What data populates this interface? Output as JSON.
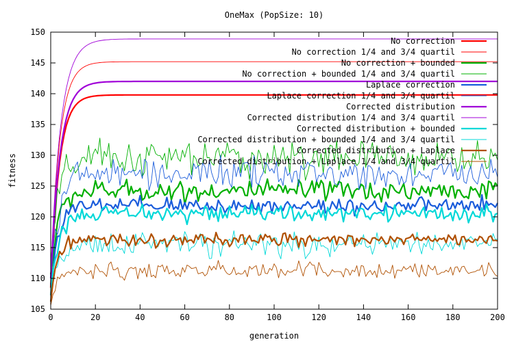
{
  "chart_data": {
    "type": "line",
    "title": "OneMax (PopSize: 10)",
    "xlabel": "generation",
    "ylabel": "fitness",
    "xlim": [
      0,
      200
    ],
    "ylim": [
      105,
      150
    ],
    "grid": false,
    "legend_placement": "top-right",
    "x_ticks": [
      "0",
      "20",
      "40",
      "60",
      "80",
      "100",
      "120",
      "140",
      "160",
      "180",
      "200"
    ],
    "y_ticks": [
      "105",
      "110",
      "115",
      "120",
      "125",
      "130",
      "135",
      "140",
      "145",
      "150"
    ],
    "series": [
      {
        "name": "No correction",
        "color": "#ff0000",
        "kind": "converge",
        "start": 108.5,
        "end": 139.8,
        "tau": 3.8,
        "noise": 0,
        "bold": true
      },
      {
        "name": "No correction 1/4 and 3/4 quartil",
        "color": "#ff0000",
        "kind": "converge",
        "start": 110,
        "end": 145.2,
        "tau": 4.0,
        "noise": 0,
        "bold": false
      },
      {
        "name": "No correction + bounded",
        "color": "#00b000",
        "kind": "noisy",
        "start": 110.5,
        "end": 124.2,
        "tau": 3.5,
        "noise": 1.3,
        "bold": true
      },
      {
        "name": "No correction + bounded 1/4 and 3/4 quartil",
        "color": "#00b000",
        "kind": "noisy",
        "start": 112,
        "end": 129.5,
        "tau": 3.5,
        "noise": 2.2,
        "bold": false
      },
      {
        "name": "Laplace correction",
        "color": "#1a5cdb",
        "kind": "noisy",
        "start": 109,
        "end": 121.8,
        "tau": 3.5,
        "noise": 1.0,
        "bold": true
      },
      {
        "name": "Laplace correction 1/4 and 3/4 quartil",
        "color": "#1a5cdb",
        "kind": "noisy",
        "start": 110,
        "end": 127,
        "tau": 3.5,
        "noise": 1.8,
        "bold": false
      },
      {
        "name": "Corrected distribution",
        "color": "#a000d8",
        "kind": "converge",
        "start": 110,
        "end": 142,
        "tau": 4.2,
        "noise": 0,
        "bold": true
      },
      {
        "name": "Corrected distribution 1/4 and 3/4 quartil",
        "color": "#a000d8",
        "kind": "converge",
        "start": 111,
        "end": 148.9,
        "tau": 4.5,
        "noise": 0,
        "bold": false
      },
      {
        "name": "Corrected distribution + bounded",
        "color": "#00d8d8",
        "kind": "noisy",
        "start": 107.5,
        "end": 120.5,
        "tau": 3.5,
        "noise": 1.0,
        "bold": true
      },
      {
        "name": "Corrected distribution + bounded 1/4 and 3/4 quartil",
        "color": "#00d8d8",
        "kind": "noisy",
        "start": 108,
        "end": 115.5,
        "tau": 3.5,
        "noise": 1.4,
        "bold": false
      },
      {
        "name": "Corrected distribution + Laplace",
        "color": "#b05000",
        "kind": "noisy",
        "start": 106.5,
        "end": 116.2,
        "tau": 3.0,
        "noise": 0.8,
        "bold": true
      },
      {
        "name": "Corrected distribution + Laplace 1/4 and 3/4 quartil",
        "color": "#b05000",
        "kind": "noisy",
        "start": 106,
        "end": 111.2,
        "tau": 3.0,
        "noise": 1.0,
        "bold": false
      }
    ]
  }
}
